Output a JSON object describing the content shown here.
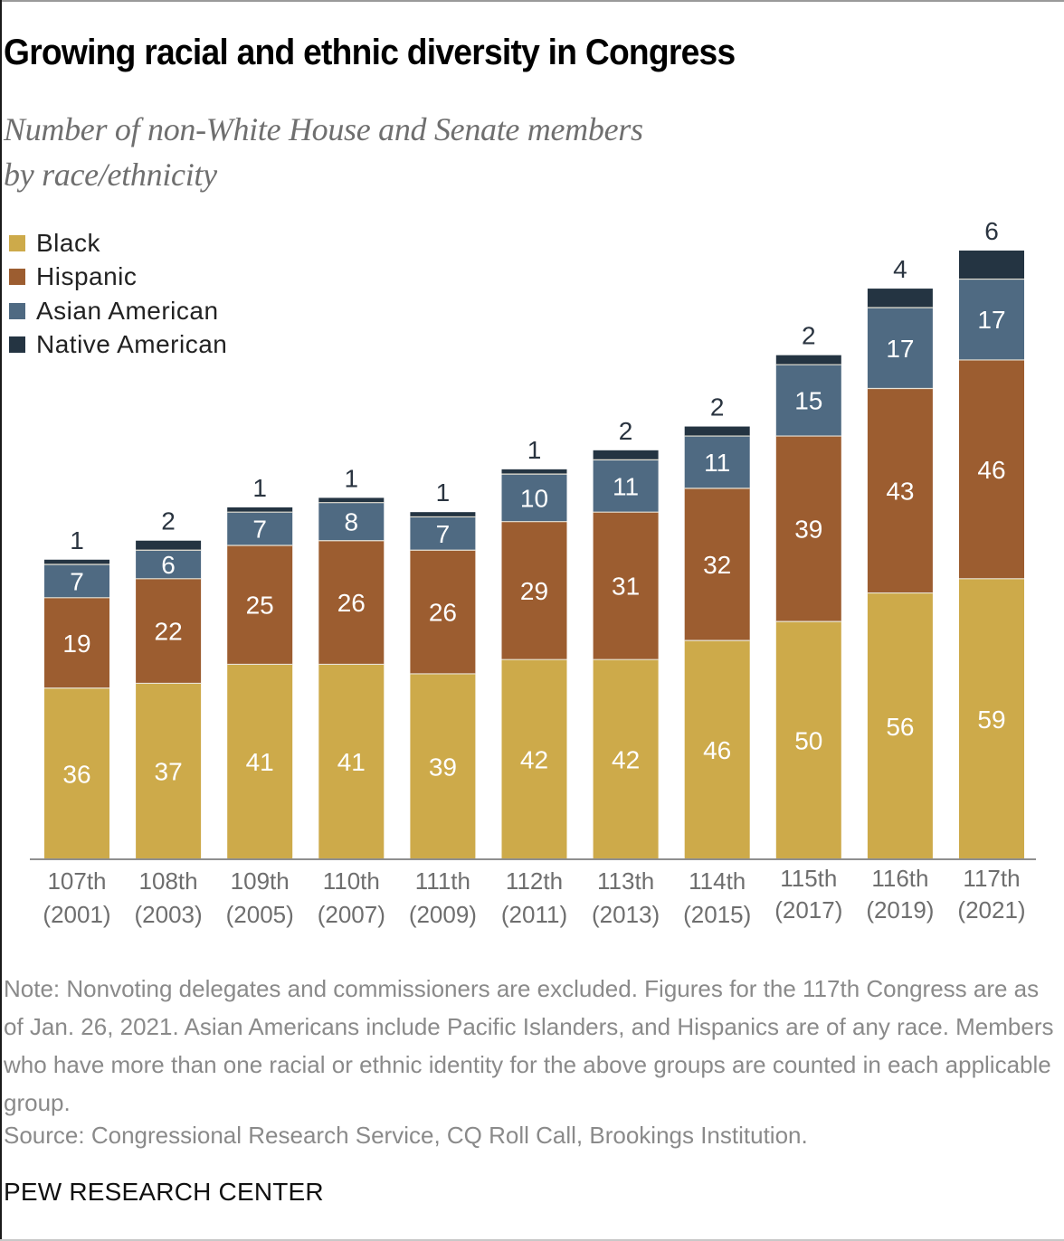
{
  "title": "Growing racial and ethnic diversity in Congress",
  "subtitle_line1": "Number of non-White House and Senate members",
  "subtitle_line2": "by race/ethnicity",
  "legend": [
    {
      "label": "Black",
      "color": "#cdaa4a"
    },
    {
      "label": "Hispanic",
      "color": "#9c5d30"
    },
    {
      "label": "Asian American",
      "color": "#4f6a82"
    },
    {
      "label": "Native American",
      "color": "#243442"
    }
  ],
  "note": "Note: Nonvoting delegates and commissioners are excluded. Figures for the 117th Congress are as of Jan. 26, 2021. Asian Americans include Pacific Islanders, and Hispanics are of any race. Members who have more than one racial or ethnic identity for the above groups are counted in each applicable group.",
  "source": "Source: Congressional Research Service, CQ Roll Call, Brookings Institution.",
  "brand": "PEW RESEARCH CENTER",
  "chart_data": {
    "type": "bar",
    "stacked": true,
    "title": "Growing racial and ethnic diversity in Congress",
    "subtitle": "Number of non-White House and Senate members by race/ethnicity",
    "xlabel": "",
    "ylabel": "",
    "grid": false,
    "legend_position": "top-left",
    "categories": [
      "107th",
      "108th",
      "109th",
      "110th",
      "111th",
      "112th",
      "113th",
      "114th",
      "115th",
      "116th",
      "117th"
    ],
    "category_years": [
      "(2001)",
      "(2003)",
      "(2005)",
      "(2007)",
      "(2009)",
      "(2011)",
      "(2013)",
      "(2015)",
      "(2017)",
      "(2019)",
      "(2021)"
    ],
    "series": [
      {
        "name": "Black",
        "color": "#cdaa4a",
        "values": [
          36,
          37,
          41,
          41,
          39,
          42,
          42,
          46,
          50,
          56,
          59
        ]
      },
      {
        "name": "Hispanic",
        "color": "#9c5d30",
        "values": [
          19,
          22,
          25,
          26,
          26,
          29,
          31,
          32,
          39,
          43,
          46
        ]
      },
      {
        "name": "Asian American",
        "color": "#4f6a82",
        "values": [
          7,
          6,
          7,
          8,
          7,
          10,
          11,
          11,
          15,
          17,
          17
        ]
      },
      {
        "name": "Native American",
        "color": "#243442",
        "values": [
          1,
          2,
          1,
          1,
          1,
          1,
          2,
          2,
          2,
          4,
          6
        ]
      }
    ],
    "ylim": [
      0,
      128
    ]
  }
}
